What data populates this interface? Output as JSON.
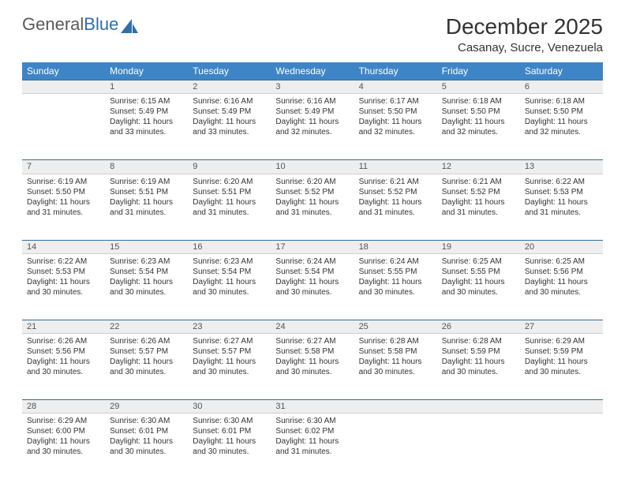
{
  "logo": {
    "part1": "General",
    "part2": "Blue"
  },
  "title": "December 2025",
  "location": "Casanay, Sucre, Venezuela",
  "colors": {
    "header_bg": "#3d85c6",
    "header_text": "#ffffff",
    "daynum_bg": "#eeeeee",
    "border": "#2f6fa8",
    "text": "#333333",
    "logo_gray": "#5a5a5a",
    "logo_blue": "#2f6fa8"
  },
  "day_headers": [
    "Sunday",
    "Monday",
    "Tuesday",
    "Wednesday",
    "Thursday",
    "Friday",
    "Saturday"
  ],
  "weeks": [
    {
      "nums": [
        "",
        "1",
        "2",
        "3",
        "4",
        "5",
        "6"
      ],
      "cells": [
        null,
        {
          "sunrise": "Sunrise: 6:15 AM",
          "sunset": "Sunset: 5:49 PM",
          "day1": "Daylight: 11 hours",
          "day2": "and 33 minutes."
        },
        {
          "sunrise": "Sunrise: 6:16 AM",
          "sunset": "Sunset: 5:49 PM",
          "day1": "Daylight: 11 hours",
          "day2": "and 33 minutes."
        },
        {
          "sunrise": "Sunrise: 6:16 AM",
          "sunset": "Sunset: 5:49 PM",
          "day1": "Daylight: 11 hours",
          "day2": "and 32 minutes."
        },
        {
          "sunrise": "Sunrise: 6:17 AM",
          "sunset": "Sunset: 5:50 PM",
          "day1": "Daylight: 11 hours",
          "day2": "and 32 minutes."
        },
        {
          "sunrise": "Sunrise: 6:18 AM",
          "sunset": "Sunset: 5:50 PM",
          "day1": "Daylight: 11 hours",
          "day2": "and 32 minutes."
        },
        {
          "sunrise": "Sunrise: 6:18 AM",
          "sunset": "Sunset: 5:50 PM",
          "day1": "Daylight: 11 hours",
          "day2": "and 32 minutes."
        }
      ]
    },
    {
      "nums": [
        "7",
        "8",
        "9",
        "10",
        "11",
        "12",
        "13"
      ],
      "cells": [
        {
          "sunrise": "Sunrise: 6:19 AM",
          "sunset": "Sunset: 5:50 PM",
          "day1": "Daylight: 11 hours",
          "day2": "and 31 minutes."
        },
        {
          "sunrise": "Sunrise: 6:19 AM",
          "sunset": "Sunset: 5:51 PM",
          "day1": "Daylight: 11 hours",
          "day2": "and 31 minutes."
        },
        {
          "sunrise": "Sunrise: 6:20 AM",
          "sunset": "Sunset: 5:51 PM",
          "day1": "Daylight: 11 hours",
          "day2": "and 31 minutes."
        },
        {
          "sunrise": "Sunrise: 6:20 AM",
          "sunset": "Sunset: 5:52 PM",
          "day1": "Daylight: 11 hours",
          "day2": "and 31 minutes."
        },
        {
          "sunrise": "Sunrise: 6:21 AM",
          "sunset": "Sunset: 5:52 PM",
          "day1": "Daylight: 11 hours",
          "day2": "and 31 minutes."
        },
        {
          "sunrise": "Sunrise: 6:21 AM",
          "sunset": "Sunset: 5:52 PM",
          "day1": "Daylight: 11 hours",
          "day2": "and 31 minutes."
        },
        {
          "sunrise": "Sunrise: 6:22 AM",
          "sunset": "Sunset: 5:53 PM",
          "day1": "Daylight: 11 hours",
          "day2": "and 31 minutes."
        }
      ]
    },
    {
      "nums": [
        "14",
        "15",
        "16",
        "17",
        "18",
        "19",
        "20"
      ],
      "cells": [
        {
          "sunrise": "Sunrise: 6:22 AM",
          "sunset": "Sunset: 5:53 PM",
          "day1": "Daylight: 11 hours",
          "day2": "and 30 minutes."
        },
        {
          "sunrise": "Sunrise: 6:23 AM",
          "sunset": "Sunset: 5:54 PM",
          "day1": "Daylight: 11 hours",
          "day2": "and 30 minutes."
        },
        {
          "sunrise": "Sunrise: 6:23 AM",
          "sunset": "Sunset: 5:54 PM",
          "day1": "Daylight: 11 hours",
          "day2": "and 30 minutes."
        },
        {
          "sunrise": "Sunrise: 6:24 AM",
          "sunset": "Sunset: 5:54 PM",
          "day1": "Daylight: 11 hours",
          "day2": "and 30 minutes."
        },
        {
          "sunrise": "Sunrise: 6:24 AM",
          "sunset": "Sunset: 5:55 PM",
          "day1": "Daylight: 11 hours",
          "day2": "and 30 minutes."
        },
        {
          "sunrise": "Sunrise: 6:25 AM",
          "sunset": "Sunset: 5:55 PM",
          "day1": "Daylight: 11 hours",
          "day2": "and 30 minutes."
        },
        {
          "sunrise": "Sunrise: 6:25 AM",
          "sunset": "Sunset: 5:56 PM",
          "day1": "Daylight: 11 hours",
          "day2": "and 30 minutes."
        }
      ]
    },
    {
      "nums": [
        "21",
        "22",
        "23",
        "24",
        "25",
        "26",
        "27"
      ],
      "cells": [
        {
          "sunrise": "Sunrise: 6:26 AM",
          "sunset": "Sunset: 5:56 PM",
          "day1": "Daylight: 11 hours",
          "day2": "and 30 minutes."
        },
        {
          "sunrise": "Sunrise: 6:26 AM",
          "sunset": "Sunset: 5:57 PM",
          "day1": "Daylight: 11 hours",
          "day2": "and 30 minutes."
        },
        {
          "sunrise": "Sunrise: 6:27 AM",
          "sunset": "Sunset: 5:57 PM",
          "day1": "Daylight: 11 hours",
          "day2": "and 30 minutes."
        },
        {
          "sunrise": "Sunrise: 6:27 AM",
          "sunset": "Sunset: 5:58 PM",
          "day1": "Daylight: 11 hours",
          "day2": "and 30 minutes."
        },
        {
          "sunrise": "Sunrise: 6:28 AM",
          "sunset": "Sunset: 5:58 PM",
          "day1": "Daylight: 11 hours",
          "day2": "and 30 minutes."
        },
        {
          "sunrise": "Sunrise: 6:28 AM",
          "sunset": "Sunset: 5:59 PM",
          "day1": "Daylight: 11 hours",
          "day2": "and 30 minutes."
        },
        {
          "sunrise": "Sunrise: 6:29 AM",
          "sunset": "Sunset: 5:59 PM",
          "day1": "Daylight: 11 hours",
          "day2": "and 30 minutes."
        }
      ]
    },
    {
      "nums": [
        "28",
        "29",
        "30",
        "31",
        "",
        "",
        ""
      ],
      "cells": [
        {
          "sunrise": "Sunrise: 6:29 AM",
          "sunset": "Sunset: 6:00 PM",
          "day1": "Daylight: 11 hours",
          "day2": "and 30 minutes."
        },
        {
          "sunrise": "Sunrise: 6:30 AM",
          "sunset": "Sunset: 6:01 PM",
          "day1": "Daylight: 11 hours",
          "day2": "and 30 minutes."
        },
        {
          "sunrise": "Sunrise: 6:30 AM",
          "sunset": "Sunset: 6:01 PM",
          "day1": "Daylight: 11 hours",
          "day2": "and 30 minutes."
        },
        {
          "sunrise": "Sunrise: 6:30 AM",
          "sunset": "Sunset: 6:02 PM",
          "day1": "Daylight: 11 hours",
          "day2": "and 31 minutes."
        },
        null,
        null,
        null
      ]
    }
  ]
}
